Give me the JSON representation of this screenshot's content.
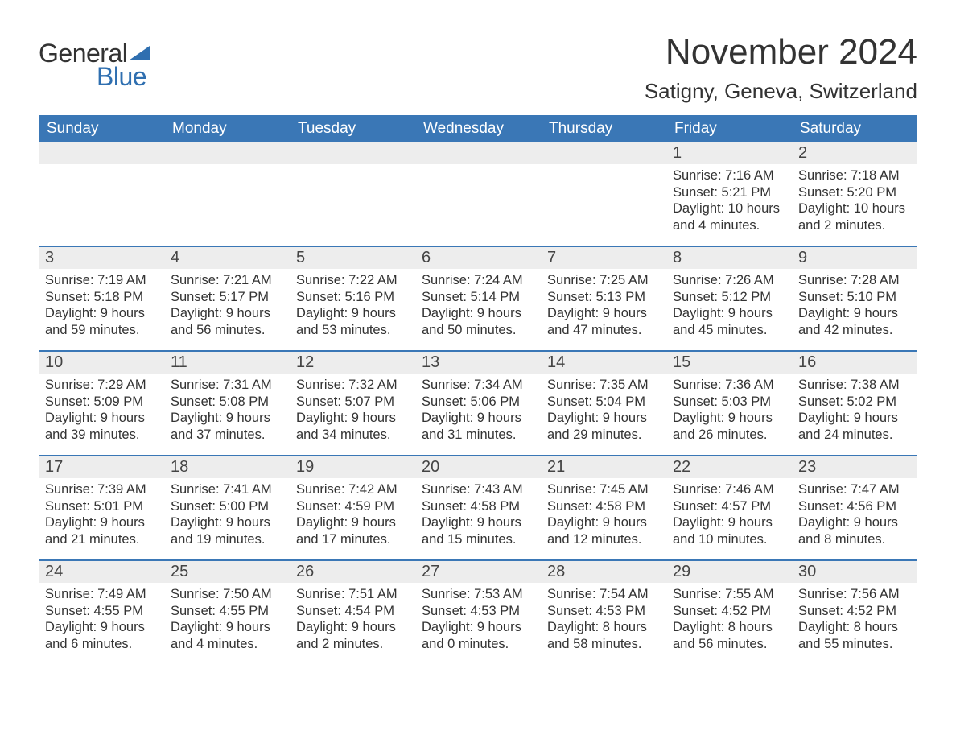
{
  "logo": {
    "text1": "General",
    "text2": "Blue"
  },
  "title": "November 2024",
  "location": "Satigny, Geneva, Switzerland",
  "colors": {
    "header_bg": "#3a77b6",
    "header_text": "#ffffff",
    "daynum_bg": "#ededed",
    "body_text": "#333333",
    "row_border": "#3a77b6",
    "logo_accent": "#2f6fb0"
  },
  "typography": {
    "title_fontsize": 44,
    "location_fontsize": 26,
    "dow_fontsize": 19,
    "daynum_fontsize": 20,
    "body_fontsize": 16.5
  },
  "days_of_week": [
    "Sunday",
    "Monday",
    "Tuesday",
    "Wednesday",
    "Thursday",
    "Friday",
    "Saturday"
  ],
  "weeks": [
    [
      null,
      null,
      null,
      null,
      null,
      {
        "n": "1",
        "sunrise": "7:16 AM",
        "sunset": "5:21 PM",
        "daylight": "10 hours and 4 minutes."
      },
      {
        "n": "2",
        "sunrise": "7:18 AM",
        "sunset": "5:20 PM",
        "daylight": "10 hours and 2 minutes."
      }
    ],
    [
      {
        "n": "3",
        "sunrise": "7:19 AM",
        "sunset": "5:18 PM",
        "daylight": "9 hours and 59 minutes."
      },
      {
        "n": "4",
        "sunrise": "7:21 AM",
        "sunset": "5:17 PM",
        "daylight": "9 hours and 56 minutes."
      },
      {
        "n": "5",
        "sunrise": "7:22 AM",
        "sunset": "5:16 PM",
        "daylight": "9 hours and 53 minutes."
      },
      {
        "n": "6",
        "sunrise": "7:24 AM",
        "sunset": "5:14 PM",
        "daylight": "9 hours and 50 minutes."
      },
      {
        "n": "7",
        "sunrise": "7:25 AM",
        "sunset": "5:13 PM",
        "daylight": "9 hours and 47 minutes."
      },
      {
        "n": "8",
        "sunrise": "7:26 AM",
        "sunset": "5:12 PM",
        "daylight": "9 hours and 45 minutes."
      },
      {
        "n": "9",
        "sunrise": "7:28 AM",
        "sunset": "5:10 PM",
        "daylight": "9 hours and 42 minutes."
      }
    ],
    [
      {
        "n": "10",
        "sunrise": "7:29 AM",
        "sunset": "5:09 PM",
        "daylight": "9 hours and 39 minutes."
      },
      {
        "n": "11",
        "sunrise": "7:31 AM",
        "sunset": "5:08 PM",
        "daylight": "9 hours and 37 minutes."
      },
      {
        "n": "12",
        "sunrise": "7:32 AM",
        "sunset": "5:07 PM",
        "daylight": "9 hours and 34 minutes."
      },
      {
        "n": "13",
        "sunrise": "7:34 AM",
        "sunset": "5:06 PM",
        "daylight": "9 hours and 31 minutes."
      },
      {
        "n": "14",
        "sunrise": "7:35 AM",
        "sunset": "5:04 PM",
        "daylight": "9 hours and 29 minutes."
      },
      {
        "n": "15",
        "sunrise": "7:36 AM",
        "sunset": "5:03 PM",
        "daylight": "9 hours and 26 minutes."
      },
      {
        "n": "16",
        "sunrise": "7:38 AM",
        "sunset": "5:02 PM",
        "daylight": "9 hours and 24 minutes."
      }
    ],
    [
      {
        "n": "17",
        "sunrise": "7:39 AM",
        "sunset": "5:01 PM",
        "daylight": "9 hours and 21 minutes."
      },
      {
        "n": "18",
        "sunrise": "7:41 AM",
        "sunset": "5:00 PM",
        "daylight": "9 hours and 19 minutes."
      },
      {
        "n": "19",
        "sunrise": "7:42 AM",
        "sunset": "4:59 PM",
        "daylight": "9 hours and 17 minutes."
      },
      {
        "n": "20",
        "sunrise": "7:43 AM",
        "sunset": "4:58 PM",
        "daylight": "9 hours and 15 minutes."
      },
      {
        "n": "21",
        "sunrise": "7:45 AM",
        "sunset": "4:58 PM",
        "daylight": "9 hours and 12 minutes."
      },
      {
        "n": "22",
        "sunrise": "7:46 AM",
        "sunset": "4:57 PM",
        "daylight": "9 hours and 10 minutes."
      },
      {
        "n": "23",
        "sunrise": "7:47 AM",
        "sunset": "4:56 PM",
        "daylight": "9 hours and 8 minutes."
      }
    ],
    [
      {
        "n": "24",
        "sunrise": "7:49 AM",
        "sunset": "4:55 PM",
        "daylight": "9 hours and 6 minutes."
      },
      {
        "n": "25",
        "sunrise": "7:50 AM",
        "sunset": "4:55 PM",
        "daylight": "9 hours and 4 minutes."
      },
      {
        "n": "26",
        "sunrise": "7:51 AM",
        "sunset": "4:54 PM",
        "daylight": "9 hours and 2 minutes."
      },
      {
        "n": "27",
        "sunrise": "7:53 AM",
        "sunset": "4:53 PM",
        "daylight": "9 hours and 0 minutes."
      },
      {
        "n": "28",
        "sunrise": "7:54 AM",
        "sunset": "4:53 PM",
        "daylight": "8 hours and 58 minutes."
      },
      {
        "n": "29",
        "sunrise": "7:55 AM",
        "sunset": "4:52 PM",
        "daylight": "8 hours and 56 minutes."
      },
      {
        "n": "30",
        "sunrise": "7:56 AM",
        "sunset": "4:52 PM",
        "daylight": "8 hours and 55 minutes."
      }
    ]
  ],
  "labels": {
    "sunrise": "Sunrise: ",
    "sunset": "Sunset: ",
    "daylight": "Daylight: "
  }
}
